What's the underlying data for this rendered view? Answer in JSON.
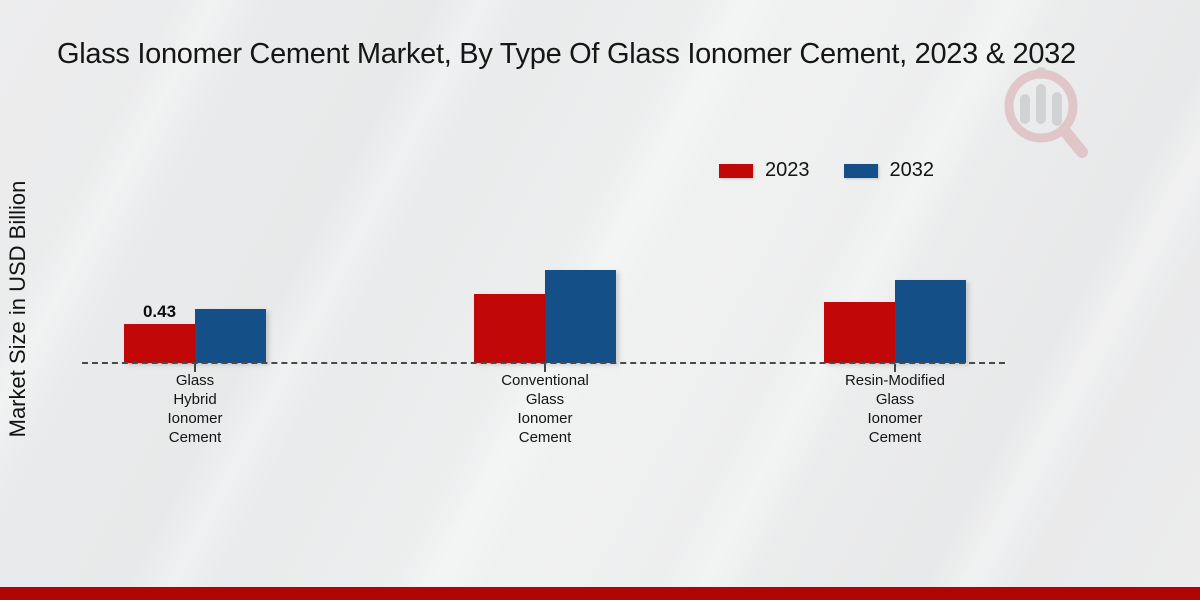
{
  "page": {
    "title": "Glass Ionomer Cement Market, By Type Of Glass Ionomer Cement, 2023 & 2032"
  },
  "y_axis": {
    "label": "Market Size in USD Billion"
  },
  "legend": {
    "items": [
      {
        "label": "2023",
        "color": "#c20708"
      },
      {
        "label": "2032",
        "color": "#144f88"
      }
    ]
  },
  "watermark": {
    "icon": "market-research-magnifier-bars-logo",
    "ring_color": "#d9a3a8",
    "bars_color": "#b7babd"
  },
  "footer": {
    "accent_color": "#b10404"
  },
  "chart_data": {
    "type": "bar",
    "title": "Glass Ionomer Cement Market, By Type Of Glass Ionomer Cement, 2023 & 2032",
    "xlabel": "",
    "ylabel": "Market Size in USD Billion",
    "categories": [
      "Glass Hybrid Ionomer Cement",
      "Conventional Glass Ionomer Cement",
      "Resin-Modified Glass Ionomer Cement"
    ],
    "series": [
      {
        "name": "2023",
        "color": "#c20708",
        "values": [
          0.43,
          0.75,
          0.67
        ],
        "labels": [
          "0.43",
          "",
          ""
        ]
      },
      {
        "name": "2032",
        "color": "#144f88",
        "values": [
          0.59,
          1.02,
          0.91
        ],
        "labels": [
          "",
          "",
          ""
        ]
      }
    ],
    "ylim": [
      0,
      1.1
    ],
    "grid": false,
    "baseline": "dashed",
    "legend_position": "top-right",
    "data_label_note": "only first 2023 bar is labeled (0.43)"
  }
}
